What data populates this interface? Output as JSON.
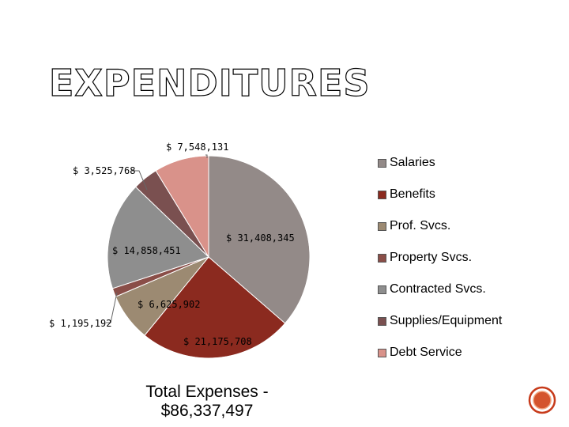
{
  "page": {
    "title": "EXPENDITURES",
    "total_line1": "Total Expenses -",
    "total_line2": "$86,337,497"
  },
  "chart_data": {
    "type": "pie",
    "title": "",
    "slices": [
      {
        "name": "Salaries",
        "value": 31408345,
        "label": "$ 31,408,345",
        "color": "#938a88"
      },
      {
        "name": "Benefits",
        "value": 21175708,
        "label": "$ 21,175,708",
        "color": "#8b2a1f"
      },
      {
        "name": "Prof. Svcs.",
        "value": 6625902,
        "label": "$ 6,625,902",
        "color": "#9c8a72"
      },
      {
        "name": "Property Svcs.",
        "value": 1195192,
        "label": "$ 1,195,192",
        "color": "#8a4e48"
      },
      {
        "name": "Contracted Svcs.",
        "value": 14858451,
        "label": "$ 14,858,451",
        "color": "#8e8e8e"
      },
      {
        "name": "Supplies/Equipment",
        "value": 3525768,
        "label": "$ 3,525,768",
        "color": "#7a5050"
      },
      {
        "name": "Debt Service",
        "value": 7548131,
        "label": "$ 7,548,131",
        "color": "#d9928a"
      }
    ],
    "legend_position": "right"
  },
  "colors": {
    "next_button_outer": "#c73a1a",
    "next_button_inner": "#e8643a"
  }
}
